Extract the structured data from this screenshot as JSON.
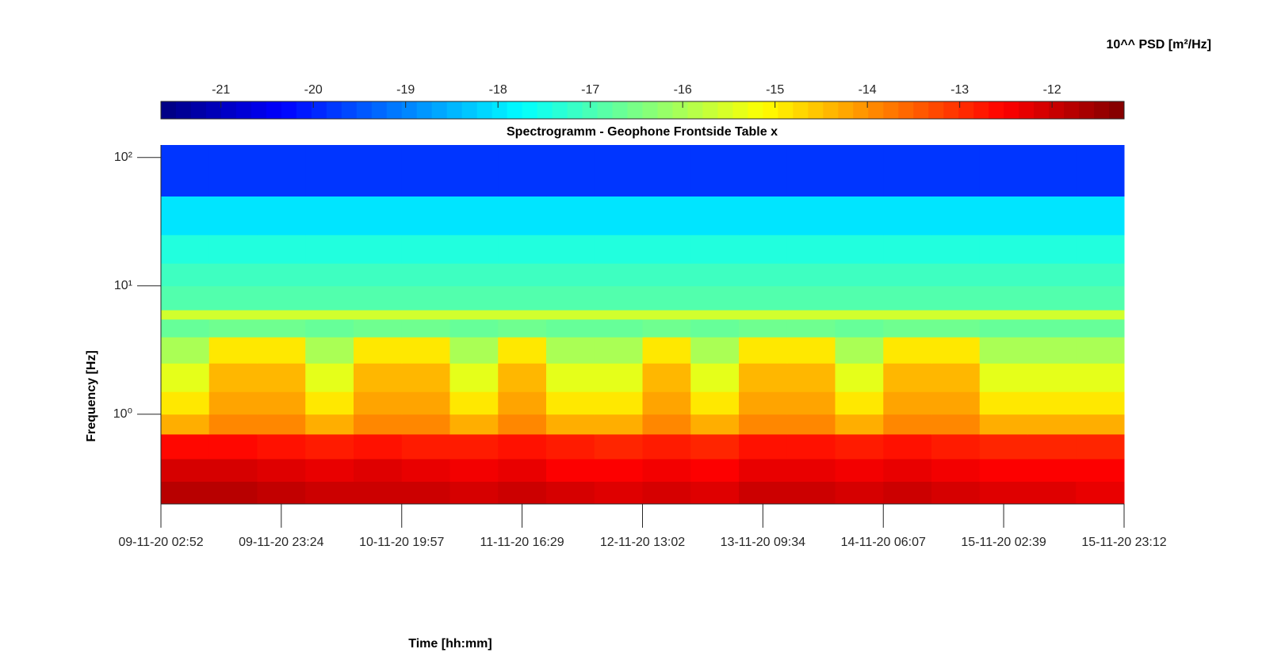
{
  "chart_data": {
    "type": "heatmap",
    "title": "Spectrogramm - Geophone Frontside Table x",
    "x_label": "Time [hh:mm]",
    "y_label": "Frequency [Hz]",
    "colorbar_label": "10^^ PSD [m²/Hz]",
    "colormap": "jet",
    "y_scale": "log",
    "xlim": [
      "09-11-20 02:52",
      "15-11-20 23:12"
    ],
    "xticks": [
      "09-11-20 02:52",
      "09-11-20 23:24",
      "10-11-20 19:57",
      "11-11-20 16:29",
      "12-11-20 13:02",
      "13-11-20 09:34",
      "14-11-20 06:07",
      "15-11-20 02:39",
      "15-11-20 23:12"
    ],
    "ylim": [
      0.2,
      125
    ],
    "yticks": [
      {
        "value": 1,
        "label": "10⁰"
      },
      {
        "value": 10,
        "label": "10¹"
      },
      {
        "value": 100,
        "label": "10²"
      }
    ],
    "clim": [
      -21.65,
      -11.22
    ],
    "cticks": [
      -21,
      -20,
      -19,
      -18,
      -17,
      -16,
      -15,
      -14,
      -13,
      -12
    ],
    "y_edges": [
      0.2,
      0.3,
      0.45,
      0.7,
      1.0,
      1.5,
      2.5,
      4,
      5.5,
      6.5,
      10,
      15,
      25,
      50,
      125
    ],
    "values": [
      [
        -11.8,
        -11.8,
        -11.9,
        -12.0,
        -12.0,
        -12.0,
        -12.1,
        -12.0,
        -12.1,
        -12.2,
        -12.1,
        -12.2,
        -12.0,
        -12.0,
        -12.1,
        -12.0,
        -12.1,
        -12.2,
        -12.2,
        -12.3
      ],
      [
        -12.1,
        -12.1,
        -12.2,
        -12.3,
        -12.2,
        -12.3,
        -12.4,
        -12.3,
        -12.5,
        -12.5,
        -12.4,
        -12.5,
        -12.3,
        -12.3,
        -12.4,
        -12.3,
        -12.4,
        -12.5,
        -12.5,
        -12.5
      ],
      [
        -12.6,
        -12.6,
        -12.7,
        -12.8,
        -12.7,
        -12.8,
        -12.8,
        -12.7,
        -12.8,
        -12.9,
        -12.8,
        -12.9,
        -12.7,
        -12.7,
        -12.8,
        -12.7,
        -12.8,
        -12.9,
        -12.9,
        -12.9
      ],
      [
        -14.3,
        -13.9,
        -13.9,
        -14.3,
        -13.9,
        -13.9,
        -14.3,
        -13.9,
        -14.3,
        -14.3,
        -13.9,
        -14.3,
        -13.9,
        -13.9,
        -14.3,
        -13.9,
        -13.9,
        -14.3,
        -14.3,
        -14.3
      ],
      [
        -14.9,
        -14.2,
        -14.2,
        -14.9,
        -14.2,
        -14.2,
        -14.9,
        -14.2,
        -14.9,
        -14.9,
        -14.2,
        -14.9,
        -14.2,
        -14.2,
        -14.9,
        -14.2,
        -14.2,
        -14.9,
        -14.9,
        -14.9
      ],
      [
        -15.4,
        -14.4,
        -14.4,
        -15.4,
        -14.4,
        -14.4,
        -15.4,
        -14.4,
        -15.4,
        -15.4,
        -14.4,
        -15.4,
        -14.4,
        -14.4,
        -15.4,
        -14.4,
        -14.4,
        -15.4,
        -15.4,
        -15.4
      ],
      [
        -16.0,
        -14.9,
        -14.9,
        -16.0,
        -14.9,
        -14.9,
        -16.0,
        -14.9,
        -16.0,
        -16.0,
        -14.9,
        -16.0,
        -14.9,
        -14.9,
        -16.0,
        -14.9,
        -14.9,
        -16.0,
        -16.0,
        -16.0
      ],
      [
        -16.7,
        -16.6,
        -16.6,
        -16.7,
        -16.6,
        -16.6,
        -16.7,
        -16.6,
        -16.7,
        -16.7,
        -16.6,
        -16.7,
        -16.6,
        -16.6,
        -16.7,
        -16.6,
        -16.6,
        -16.7,
        -16.7,
        -16.7
      ],
      [
        -15.6,
        -15.6,
        -15.6,
        -15.6,
        -15.6,
        -15.6,
        -15.6,
        -15.6,
        -15.6,
        -15.6,
        -15.6,
        -15.6,
        -15.6,
        -15.6,
        -15.6,
        -15.6,
        -15.6,
        -15.6,
        -15.6,
        -15.6
      ],
      [
        -16.9,
        -16.9,
        -16.9,
        -16.9,
        -16.9,
        -16.9,
        -16.9,
        -16.9,
        -16.9,
        -16.9,
        -16.9,
        -16.9,
        -16.9,
        -16.9,
        -16.9,
        -16.9,
        -16.9,
        -16.9,
        -16.9,
        -16.9
      ],
      [
        -17.1,
        -17.1,
        -17.1,
        -17.1,
        -17.1,
        -17.1,
        -17.1,
        -17.1,
        -17.1,
        -17.1,
        -17.1,
        -17.1,
        -17.1,
        -17.1,
        -17.1,
        -17.1,
        -17.1,
        -17.1,
        -17.1,
        -17.1
      ],
      [
        -17.4,
        -17.4,
        -17.4,
        -17.4,
        -17.4,
        -17.4,
        -17.4,
        -17.4,
        -17.4,
        -17.4,
        -17.4,
        -17.4,
        -17.4,
        -17.4,
        -17.4,
        -17.4,
        -17.4,
        -17.4,
        -17.4,
        -17.4
      ],
      [
        -18.0,
        -18.0,
        -18.0,
        -18.0,
        -18.0,
        -18.0,
        -18.0,
        -18.0,
        -18.0,
        -18.0,
        -18.0,
        -18.0,
        -18.0,
        -18.0,
        -18.0,
        -18.0,
        -18.0,
        -18.0,
        -18.0,
        -18.0
      ],
      [
        -19.8,
        -19.8,
        -19.8,
        -19.8,
        -19.8,
        -19.8,
        -19.8,
        -19.8,
        -19.8,
        -19.8,
        -19.8,
        -19.8,
        -19.8,
        -19.8,
        -19.8,
        -19.8,
        -19.8,
        -19.8,
        -19.8,
        -19.8
      ]
    ]
  }
}
